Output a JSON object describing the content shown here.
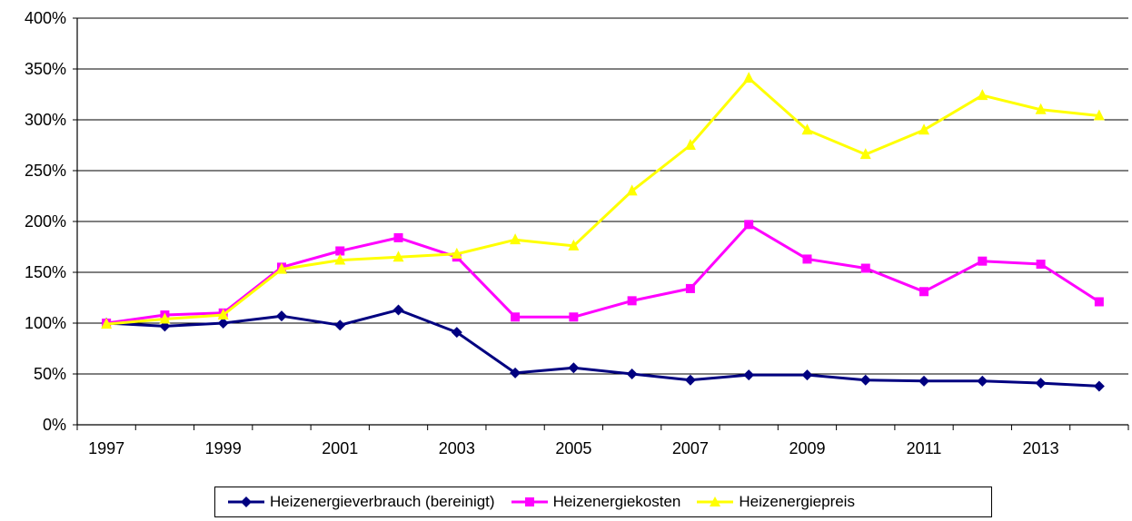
{
  "chart_data": {
    "type": "line",
    "x": [
      1997,
      1998,
      1999,
      2000,
      2001,
      2002,
      2003,
      2004,
      2005,
      2006,
      2007,
      2008,
      2009,
      2010,
      2011,
      2012,
      2013,
      2014
    ],
    "x_tick_labels": [
      "1997",
      "1999",
      "2001",
      "2003",
      "2005",
      "2007",
      "2009",
      "2011",
      "2013"
    ],
    "y_tick_labels": [
      "0%",
      "50%",
      "100%",
      "150%",
      "200%",
      "250%",
      "300%",
      "350%",
      "400%"
    ],
    "ylim": [
      0,
      400
    ],
    "grid": true,
    "legend_position": "bottom",
    "series": [
      {
        "name": "Heizenergieverbrauch (bereinigt)",
        "color": "#000080",
        "marker": "diamond",
        "values": [
          100,
          97,
          100,
          107,
          98,
          113,
          91,
          51,
          56,
          50,
          44,
          49,
          49,
          44,
          43,
          43,
          41,
          38
        ]
      },
      {
        "name": "Heizenergiekosten",
        "color": "#ff00ff",
        "marker": "square",
        "values": [
          100,
          108,
          110,
          155,
          171,
          184,
          165,
          106,
          106,
          122,
          134,
          197,
          163,
          154,
          131,
          161,
          158,
          121
        ]
      },
      {
        "name": "Heizenergiepreis",
        "color": "#ffff00",
        "marker": "triangle",
        "values": [
          99,
          104,
          108,
          153,
          162,
          165,
          168,
          182,
          176,
          230,
          275,
          341,
          290,
          266,
          290,
          324,
          310,
          304
        ]
      }
    ]
  }
}
